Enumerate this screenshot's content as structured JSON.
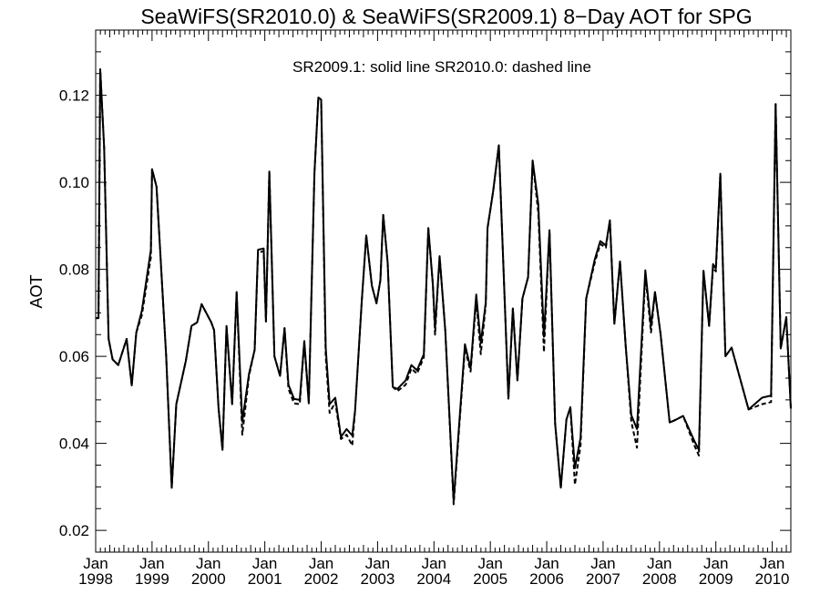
{
  "chart_data": {
    "type": "line",
    "title": "SeaWiFS(SR2010.0) & SeaWiFS(SR2009.1) 8−Day AOT for SPG",
    "annotation": "SR2009.1: solid line   SR2010.0: dashed line",
    "xlabel": "",
    "ylabel": "AOT",
    "xlim": [
      1998.0,
      2010.33
    ],
    "ylim": [
      0.015,
      0.135
    ],
    "grid": false,
    "y_ticks": [
      "0.02",
      "0.04",
      "0.06",
      "0.08",
      "0.10",
      "0.12"
    ],
    "y_tick_values": [
      0.02,
      0.04,
      0.06,
      0.08,
      0.1,
      0.12
    ],
    "x_ticks": [
      {
        "year": 1998,
        "month": "Jan",
        "label": "1998"
      },
      {
        "year": 1999,
        "month": "Jan",
        "label": "1999"
      },
      {
        "year": 2000,
        "month": "Jan",
        "label": "2000"
      },
      {
        "year": 2001,
        "month": "Jan",
        "label": "2001"
      },
      {
        "year": 2002,
        "month": "Jan",
        "label": "2002"
      },
      {
        "year": 2003,
        "month": "Jan",
        "label": "2003"
      },
      {
        "year": 2004,
        "month": "Jan",
        "label": "2004"
      },
      {
        "year": 2005,
        "month": "Jan",
        "label": "2005"
      },
      {
        "year": 2006,
        "month": "Jan",
        "label": "2006"
      },
      {
        "year": 2007,
        "month": "Jan",
        "label": "2007"
      },
      {
        "year": 2008,
        "month": "Jan",
        "label": "2008"
      },
      {
        "year": 2009,
        "month": "Jan",
        "label": "2009"
      },
      {
        "year": 2010,
        "month": "Jan",
        "label": "2010"
      }
    ],
    "series": [
      {
        "name": "SR2009.1",
        "style": "solid",
        "color": "#000000",
        "points": [
          [
            1998.0,
            0.0688
          ],
          [
            1998.05,
            0.0688
          ],
          [
            1998.08,
            0.126
          ],
          [
            1998.15,
            0.108
          ],
          [
            1998.23,
            0.064
          ],
          [
            1998.3,
            0.0593
          ],
          [
            1998.4,
            0.058
          ],
          [
            1998.55,
            0.064
          ],
          [
            1998.64,
            0.0533
          ],
          [
            1998.72,
            0.0655
          ],
          [
            1998.82,
            0.0705
          ],
          [
            1998.98,
            0.0845
          ],
          [
            1999.0,
            0.103
          ],
          [
            1999.08,
            0.099
          ],
          [
            1999.25,
            0.06
          ],
          [
            1999.35,
            0.0298
          ],
          [
            1999.43,
            0.049
          ],
          [
            1999.6,
            0.059
          ],
          [
            1999.7,
            0.067
          ],
          [
            1999.8,
            0.0678
          ],
          [
            1999.88,
            0.072
          ],
          [
            2000.05,
            0.0678
          ],
          [
            2000.1,
            0.066
          ],
          [
            2000.18,
            0.048
          ],
          [
            2000.25,
            0.0385
          ],
          [
            2000.32,
            0.067
          ],
          [
            2000.42,
            0.049
          ],
          [
            2000.5,
            0.0748
          ],
          [
            2000.6,
            0.045
          ],
          [
            2000.72,
            0.056
          ],
          [
            2000.82,
            0.0615
          ],
          [
            2000.88,
            0.0845
          ],
          [
            2000.98,
            0.0848
          ],
          [
            2001.02,
            0.068
          ],
          [
            2001.08,
            0.1025
          ],
          [
            2001.17,
            0.06
          ],
          [
            2001.27,
            0.0555
          ],
          [
            2001.35,
            0.0665
          ],
          [
            2001.42,
            0.0535
          ],
          [
            2001.52,
            0.0502
          ],
          [
            2001.62,
            0.05
          ],
          [
            2001.7,
            0.0635
          ],
          [
            2001.78,
            0.0492
          ],
          [
            2001.88,
            0.102
          ],
          [
            2001.95,
            0.1195
          ],
          [
            2002.0,
            0.119
          ],
          [
            2002.08,
            0.062
          ],
          [
            2002.15,
            0.049
          ],
          [
            2002.25,
            0.0505
          ],
          [
            2002.35,
            0.0415
          ],
          [
            2002.45,
            0.0433
          ],
          [
            2002.55,
            0.0418
          ],
          [
            2002.6,
            0.0475
          ],
          [
            2002.72,
            0.0728
          ],
          [
            2002.8,
            0.0878
          ],
          [
            2002.9,
            0.0762
          ],
          [
            2002.98,
            0.0722
          ],
          [
            2003.05,
            0.0775
          ],
          [
            2003.1,
            0.0925
          ],
          [
            2003.18,
            0.0815
          ],
          [
            2003.27,
            0.053
          ],
          [
            2003.35,
            0.0525
          ],
          [
            2003.5,
            0.0545
          ],
          [
            2003.6,
            0.058
          ],
          [
            2003.7,
            0.0568
          ],
          [
            2003.82,
            0.0605
          ],
          [
            2003.9,
            0.0895
          ],
          [
            2003.98,
            0.0765
          ],
          [
            2004.02,
            0.0665
          ],
          [
            2004.1,
            0.083
          ],
          [
            2004.2,
            0.066
          ],
          [
            2004.35,
            0.0268
          ],
          [
            2004.55,
            0.0628
          ],
          [
            2004.65,
            0.0572
          ],
          [
            2004.75,
            0.0742
          ],
          [
            2004.83,
            0.063
          ],
          [
            2004.92,
            0.0725
          ],
          [
            2004.95,
            0.0895
          ],
          [
            2005.05,
            0.098
          ],
          [
            2005.15,
            0.1085
          ],
          [
            2005.32,
            0.0503
          ],
          [
            2005.4,
            0.071
          ],
          [
            2005.48,
            0.0545
          ],
          [
            2005.57,
            0.0733
          ],
          [
            2005.67,
            0.0782
          ],
          [
            2005.75,
            0.105
          ],
          [
            2005.85,
            0.095
          ],
          [
            2005.95,
            0.0645
          ],
          [
            2006.05,
            0.089
          ],
          [
            2006.15,
            0.0445
          ],
          [
            2006.25,
            0.0298
          ],
          [
            2006.35,
            0.0455
          ],
          [
            2006.42,
            0.0483
          ],
          [
            2006.5,
            0.0343
          ],
          [
            2006.6,
            0.0413
          ],
          [
            2006.7,
            0.0733
          ],
          [
            2006.85,
            0.0822
          ],
          [
            2006.95,
            0.0865
          ],
          [
            2007.05,
            0.0855
          ],
          [
            2007.12,
            0.0913
          ],
          [
            2007.2,
            0.0675
          ],
          [
            2007.3,
            0.0818
          ],
          [
            2007.4,
            0.0625
          ],
          [
            2007.5,
            0.0465
          ],
          [
            2007.6,
            0.0433
          ],
          [
            2007.75,
            0.0798
          ],
          [
            2007.85,
            0.067
          ],
          [
            2007.92,
            0.0748
          ],
          [
            2008.02,
            0.065
          ],
          [
            2008.18,
            0.0448
          ],
          [
            2008.3,
            0.0455
          ],
          [
            2008.42,
            0.0463
          ],
          [
            2008.62,
            0.0405
          ],
          [
            2008.7,
            0.0385
          ],
          [
            2008.78,
            0.0797
          ],
          [
            2008.88,
            0.067
          ],
          [
            2008.95,
            0.0812
          ],
          [
            2009.0,
            0.0802
          ],
          [
            2009.08,
            0.102
          ],
          [
            2009.17,
            0.06
          ],
          [
            2009.28,
            0.062
          ],
          [
            2009.58,
            0.0478
          ],
          [
            2009.82,
            0.0505
          ],
          [
            2009.98,
            0.051
          ],
          [
            2010.06,
            0.118
          ],
          [
            2010.15,
            0.0618
          ],
          [
            2010.25,
            0.069
          ],
          [
            2010.33,
            0.048
          ]
        ]
      },
      {
        "name": "SR2010.0",
        "style": "dashed",
        "color": "#000000",
        "points": [
          [
            1998.0,
            0.0688
          ],
          [
            1998.05,
            0.0688
          ],
          [
            1998.08,
            0.126
          ],
          [
            1998.15,
            0.108
          ],
          [
            1998.23,
            0.064
          ],
          [
            1998.3,
            0.0593
          ],
          [
            1998.4,
            0.058
          ],
          [
            1998.55,
            0.064
          ],
          [
            1998.64,
            0.0533
          ],
          [
            1998.72,
            0.0655
          ],
          [
            1998.82,
            0.0695
          ],
          [
            1998.98,
            0.0828
          ],
          [
            1999.0,
            0.103
          ],
          [
            1999.08,
            0.099
          ],
          [
            1999.25,
            0.06
          ],
          [
            1999.35,
            0.0298
          ],
          [
            1999.43,
            0.049
          ],
          [
            1999.6,
            0.059
          ],
          [
            1999.7,
            0.067
          ],
          [
            1999.8,
            0.0678
          ],
          [
            1999.88,
            0.072
          ],
          [
            2000.05,
            0.0678
          ],
          [
            2000.1,
            0.066
          ],
          [
            2000.18,
            0.048
          ],
          [
            2000.25,
            0.0385
          ],
          [
            2000.32,
            0.067
          ],
          [
            2000.42,
            0.049
          ],
          [
            2000.5,
            0.0748
          ],
          [
            2000.6,
            0.042
          ],
          [
            2000.72,
            0.0555
          ],
          [
            2000.82,
            0.0615
          ],
          [
            2000.88,
            0.0838
          ],
          [
            2000.98,
            0.0842
          ],
          [
            2001.02,
            0.068
          ],
          [
            2001.08,
            0.1025
          ],
          [
            2001.17,
            0.06
          ],
          [
            2001.27,
            0.0555
          ],
          [
            2001.35,
            0.0665
          ],
          [
            2001.42,
            0.0525
          ],
          [
            2001.52,
            0.0492
          ],
          [
            2001.62,
            0.049
          ],
          [
            2001.7,
            0.0635
          ],
          [
            2001.78,
            0.0492
          ],
          [
            2001.88,
            0.102
          ],
          [
            2001.95,
            0.1195
          ],
          [
            2002.0,
            0.119
          ],
          [
            2002.08,
            0.06
          ],
          [
            2002.15,
            0.047
          ],
          [
            2002.25,
            0.0495
          ],
          [
            2002.35,
            0.041
          ],
          [
            2002.45,
            0.042
          ],
          [
            2002.55,
            0.0395
          ],
          [
            2002.6,
            0.0475
          ],
          [
            2002.72,
            0.0728
          ],
          [
            2002.8,
            0.0878
          ],
          [
            2002.9,
            0.0762
          ],
          [
            2002.98,
            0.0722
          ],
          [
            2003.05,
            0.0775
          ],
          [
            2003.1,
            0.0925
          ],
          [
            2003.18,
            0.0815
          ],
          [
            2003.27,
            0.053
          ],
          [
            2003.35,
            0.052
          ],
          [
            2003.5,
            0.0535
          ],
          [
            2003.6,
            0.0572
          ],
          [
            2003.7,
            0.056
          ],
          [
            2003.82,
            0.0598
          ],
          [
            2003.9,
            0.0895
          ],
          [
            2003.98,
            0.0765
          ],
          [
            2004.02,
            0.065
          ],
          [
            2004.1,
            0.083
          ],
          [
            2004.2,
            0.066
          ],
          [
            2004.35,
            0.026
          ],
          [
            2004.55,
            0.0618
          ],
          [
            2004.65,
            0.0565
          ],
          [
            2004.75,
            0.073
          ],
          [
            2004.83,
            0.0605
          ],
          [
            2004.92,
            0.072
          ],
          [
            2004.95,
            0.0895
          ],
          [
            2005.05,
            0.098
          ],
          [
            2005.15,
            0.1085
          ],
          [
            2005.32,
            0.0503
          ],
          [
            2005.4,
            0.071
          ],
          [
            2005.48,
            0.0545
          ],
          [
            2005.57,
            0.0733
          ],
          [
            2005.67,
            0.0782
          ],
          [
            2005.75,
            0.105
          ],
          [
            2005.85,
            0.093
          ],
          [
            2005.95,
            0.061
          ],
          [
            2006.05,
            0.089
          ],
          [
            2006.15,
            0.0445
          ],
          [
            2006.25,
            0.0298
          ],
          [
            2006.35,
            0.0455
          ],
          [
            2006.42,
            0.0483
          ],
          [
            2006.5,
            0.0305
          ],
          [
            2006.6,
            0.0395
          ],
          [
            2006.7,
            0.0733
          ],
          [
            2006.85,
            0.0815
          ],
          [
            2006.95,
            0.0858
          ],
          [
            2007.05,
            0.085
          ],
          [
            2007.12,
            0.0913
          ],
          [
            2007.2,
            0.0675
          ],
          [
            2007.3,
            0.0818
          ],
          [
            2007.4,
            0.0625
          ],
          [
            2007.5,
            0.045
          ],
          [
            2007.6,
            0.039
          ],
          [
            2007.75,
            0.0788
          ],
          [
            2007.85,
            0.0655
          ],
          [
            2007.92,
            0.0748
          ],
          [
            2008.02,
            0.065
          ],
          [
            2008.18,
            0.0448
          ],
          [
            2008.3,
            0.0455
          ],
          [
            2008.42,
            0.0463
          ],
          [
            2008.62,
            0.0395
          ],
          [
            2008.7,
            0.0372
          ],
          [
            2008.78,
            0.0797
          ],
          [
            2008.88,
            0.067
          ],
          [
            2008.95,
            0.0805
          ],
          [
            2009.0,
            0.0795
          ],
          [
            2009.08,
            0.102
          ],
          [
            2009.17,
            0.06
          ],
          [
            2009.28,
            0.062
          ],
          [
            2009.58,
            0.0478
          ],
          [
            2009.82,
            0.049
          ],
          [
            2009.98,
            0.0495
          ],
          [
            2010.06,
            0.118
          ],
          [
            2010.15,
            0.0618
          ],
          [
            2010.25,
            0.069
          ],
          [
            2010.33,
            0.048
          ]
        ]
      }
    ]
  }
}
